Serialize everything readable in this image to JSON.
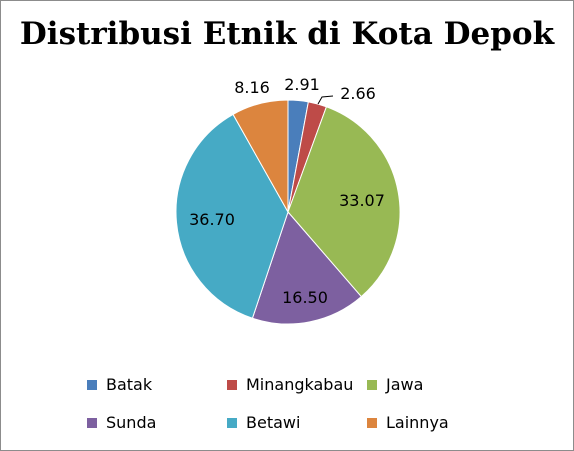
{
  "chart_data": {
    "type": "pie",
    "title": "Distribusi Etnik di Kota Depok",
    "slices": [
      {
        "label": "Batak",
        "value": 2.91,
        "display": "2.91",
        "color": "#4a7ebb"
      },
      {
        "label": "Minangkabau",
        "value": 2.66,
        "display": "2.66",
        "color": "#be4b48"
      },
      {
        "label": "Jawa",
        "value": 33.07,
        "display": "33.07",
        "color": "#98b954"
      },
      {
        "label": "Sunda",
        "value": 16.5,
        "display": "16.50",
        "color": "#7d60a0"
      },
      {
        "label": "Betawi",
        "value": 36.7,
        "display": "36.70",
        "color": "#46aac5"
      },
      {
        "label": "Lainnya",
        "value": 8.16,
        "display": "8.16",
        "color": "#dc853e"
      }
    ],
    "legend_position": "bottom"
  }
}
